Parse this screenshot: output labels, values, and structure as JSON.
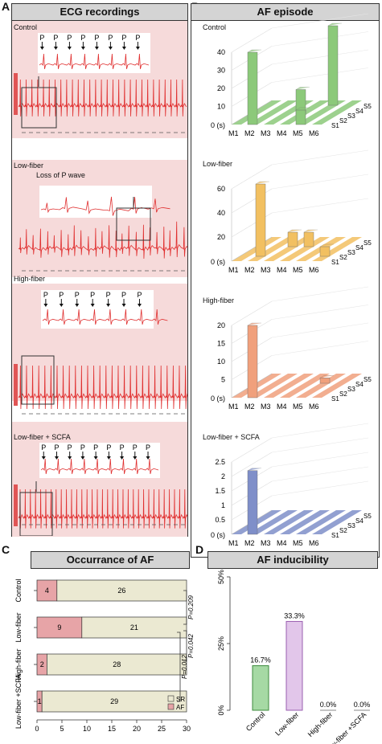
{
  "labels": {
    "A": "A",
    "B": "B",
    "C": "C",
    "D": "D"
  },
  "panelA": {
    "title": "ECG recordings",
    "rows": [
      {
        "name": "Control",
        "annotation": ""
      },
      {
        "name": "Low-fiber",
        "annotation": "Loss of P wave"
      },
      {
        "name": "High-fiber",
        "annotation": ""
      },
      {
        "name": "Low-fiber + SCFA",
        "annotation": ""
      }
    ],
    "p_label": "P"
  },
  "panelB": {
    "title": "AF episode",
    "x_labels": [
      "M1",
      "M2",
      "M3",
      "M4",
      "M5",
      "M6"
    ],
    "s_labels": [
      "S1",
      "S2",
      "S3",
      "S4",
      "S5"
    ],
    "zero_label": "0 (s)",
    "charts": [
      {
        "name": "Control",
        "color": "#8cc97a",
        "yticks": [
          "10",
          "20",
          "30",
          "40"
        ],
        "ymax": 40
      },
      {
        "name": "Low-fiber",
        "color": "#f2c061",
        "yticks": [
          "20",
          "40",
          "60"
        ],
        "ymax": 60
      },
      {
        "name": "High-fiber",
        "color": "#f0a07c",
        "yticks": [
          "5",
          "10",
          "15",
          "20"
        ],
        "ymax": 20
      },
      {
        "name": "Low-fiber + SCFA",
        "color": "#7f8fc9",
        "yticks": [
          "0.5",
          "1",
          "1.5",
          "2",
          "2.5"
        ],
        "ymax": 2.5
      }
    ]
  },
  "panelC": {
    "title": "Occurrance of AF",
    "pvals": [
      "P=0.209",
      "P=0.042",
      "P=0.012"
    ],
    "legend": {
      "sr": "SR",
      "af": "AF"
    },
    "colors": {
      "sr": "#ebe9d2",
      "af": "#e7a4a7"
    }
  },
  "panelD": {
    "title": "AF inducibility",
    "colors": [
      "#a6d9a4",
      "#e2c6ea",
      "#ffffff",
      "#ffffff"
    ],
    "borders": [
      "#3d8a3d",
      "#9a5fb0",
      "#888888",
      "#888888"
    ]
  },
  "chart_data": [
    {
      "type": "bar",
      "title": "Occurrance of AF",
      "categories": [
        "Control",
        "Low-fiber",
        "High-fiber",
        "Low-fiber +SCFA"
      ],
      "series": [
        {
          "name": "AF",
          "values": [
            4,
            9,
            2,
            1
          ]
        },
        {
          "name": "SR",
          "values": [
            26,
            21,
            28,
            29
          ]
        }
      ],
      "xticks": [
        "0",
        "5",
        "10",
        "15",
        "20",
        "25",
        "30"
      ],
      "xlim": [
        0,
        30
      ],
      "orientation": "horizontal",
      "stacked": true
    },
    {
      "type": "bar",
      "title": "AF inducibility",
      "categories": [
        "Control",
        "Low-fiber",
        "High-fiber",
        "Low-fiber +SCFA"
      ],
      "values": [
        16.7,
        33.3,
        0.0,
        0.0
      ],
      "data_labels": [
        "16.7%",
        "33.3%",
        "0.0%",
        "0.0%"
      ],
      "yticks": [
        "0%",
        "25%",
        "50%"
      ],
      "ylim": [
        0,
        50
      ]
    }
  ]
}
